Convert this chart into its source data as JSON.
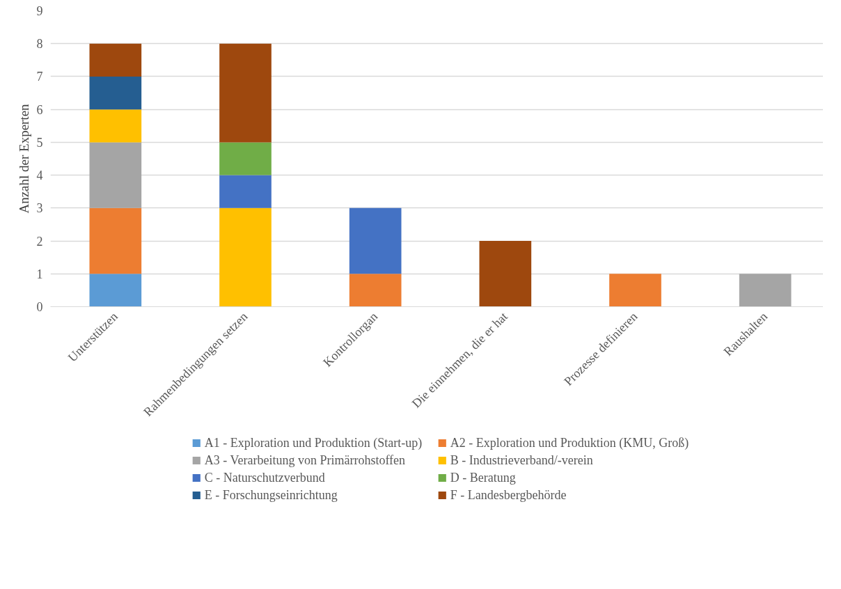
{
  "chart_data": {
    "type": "bar",
    "stacked": true,
    "ylabel": "Anzahl der Experten",
    "categories": [
      "Unterstützen",
      "Rahmenbedingungen setzen",
      "Kontrollorgan",
      "Die einnehmen, die er hat",
      "Prozesse definieren",
      "Raushalten"
    ],
    "series": [
      {
        "name": "A1 - Exploration und Produktion (Start-up)",
        "color": "#5b9bd5",
        "values": [
          1,
          null,
          null,
          null,
          null,
          null
        ]
      },
      {
        "name": "A2 - Exploration und Produktion (KMU, Groß)",
        "color": "#ed7d31",
        "values": [
          2,
          null,
          1,
          null,
          1,
          null
        ]
      },
      {
        "name": "A3 - Verarbeitung von Primärrohstoffen",
        "color": "#a5a5a5",
        "values": [
          2,
          null,
          null,
          null,
          null,
          1
        ]
      },
      {
        "name": "B - Industrieverband/-verein",
        "color": "#ffc000",
        "values": [
          1,
          3,
          null,
          null,
          null,
          null
        ]
      },
      {
        "name": "C - Naturschutzverbund",
        "color": "#4472c4",
        "values": [
          null,
          1,
          2,
          null,
          null,
          null
        ]
      },
      {
        "name": "D - Beratung",
        "color": "#70ad47",
        "values": [
          null,
          1,
          null,
          null,
          null,
          null
        ]
      },
      {
        "name": "E - Forschungseinrichtung",
        "color": "#255e91",
        "values": [
          1,
          null,
          null,
          null,
          null,
          null
        ]
      },
      {
        "name": "F - Landesbergbehörde",
        "color": "#9e480e",
        "values": [
          1,
          3,
          null,
          2,
          null,
          null
        ]
      }
    ],
    "ylim": [
      0,
      9
    ],
    "yticks": [
      0,
      1,
      2,
      3,
      4,
      5,
      6,
      7,
      8,
      9
    ],
    "grid": "y",
    "legend": "bottom"
  }
}
